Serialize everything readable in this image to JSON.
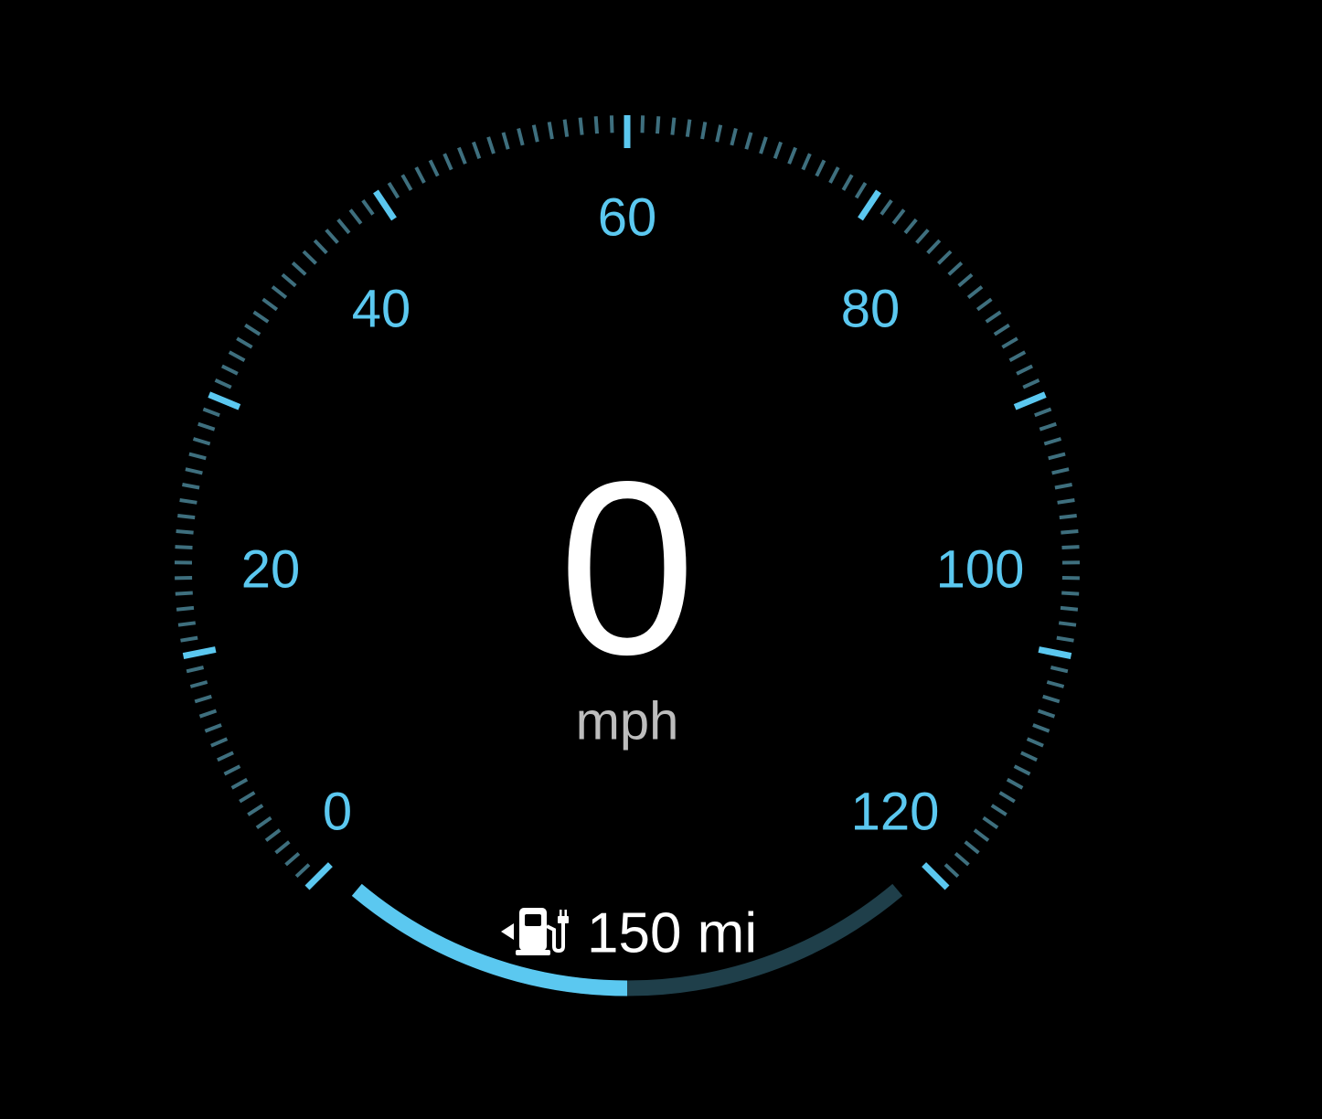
{
  "speedometer": {
    "speed": "0",
    "unit": "mph",
    "range": "150 mi",
    "range_fraction": 0.5,
    "scale_min": 0,
    "scale_max": 120,
    "labels": [
      "0",
      "20",
      "40",
      "60",
      "80",
      "100",
      "120"
    ],
    "fuel_icon": "fuel-pump-plug-icon"
  },
  "colors": {
    "accent": "#5BC8F0",
    "minor_tick": "#3E6F7E",
    "range_track": "#1F3F4A",
    "value": "#FFFFFF",
    "unit": "#BDBDBD",
    "background": "#000000"
  }
}
